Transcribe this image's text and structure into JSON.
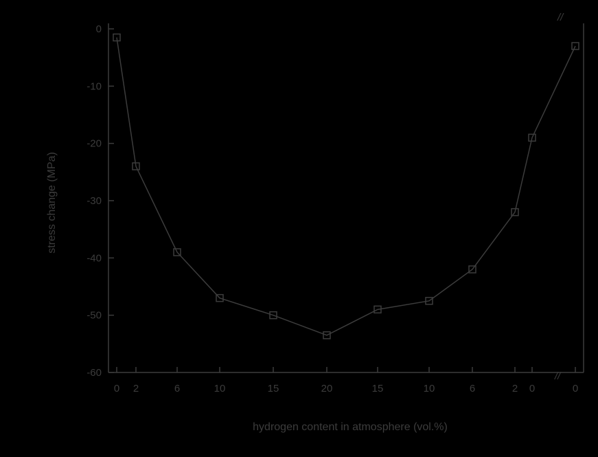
{
  "chart_data": {
    "type": "line",
    "title": "",
    "xlabel": "hydrogen content in atmosphere (vol.%)",
    "ylabel": "stress change (MPa)",
    "ylim": [
      -60,
      0
    ],
    "yticks": [
      0,
      -10,
      -20,
      -30,
      -40,
      -50,
      -60
    ],
    "x_categories": [
      "0",
      "2",
      "6",
      "10",
      "15",
      "20",
      "15",
      "10",
      "6",
      "2",
      "0",
      "0"
    ],
    "grid": false,
    "legend": "none",
    "axis_break": "//",
    "colors": {
      "background": "#000000",
      "foreground": "#3c3c3c"
    },
    "series": [
      {
        "marker": "square",
        "points": [
          {
            "x": "0",
            "y": -1.5
          },
          {
            "x": "2",
            "y": -24
          },
          {
            "x": "6",
            "y": -39
          },
          {
            "x": "10",
            "y": -47
          },
          {
            "x": "15",
            "y": -50
          },
          {
            "x": "20",
            "y": -53.5
          },
          {
            "x": "15",
            "y": -49
          },
          {
            "x": "10",
            "y": -47.5
          },
          {
            "x": "6",
            "y": -42
          },
          {
            "x": "2",
            "y": -32
          },
          {
            "x": "0",
            "y": -19
          },
          {
            "x": "0",
            "y": -3
          }
        ]
      }
    ]
  }
}
